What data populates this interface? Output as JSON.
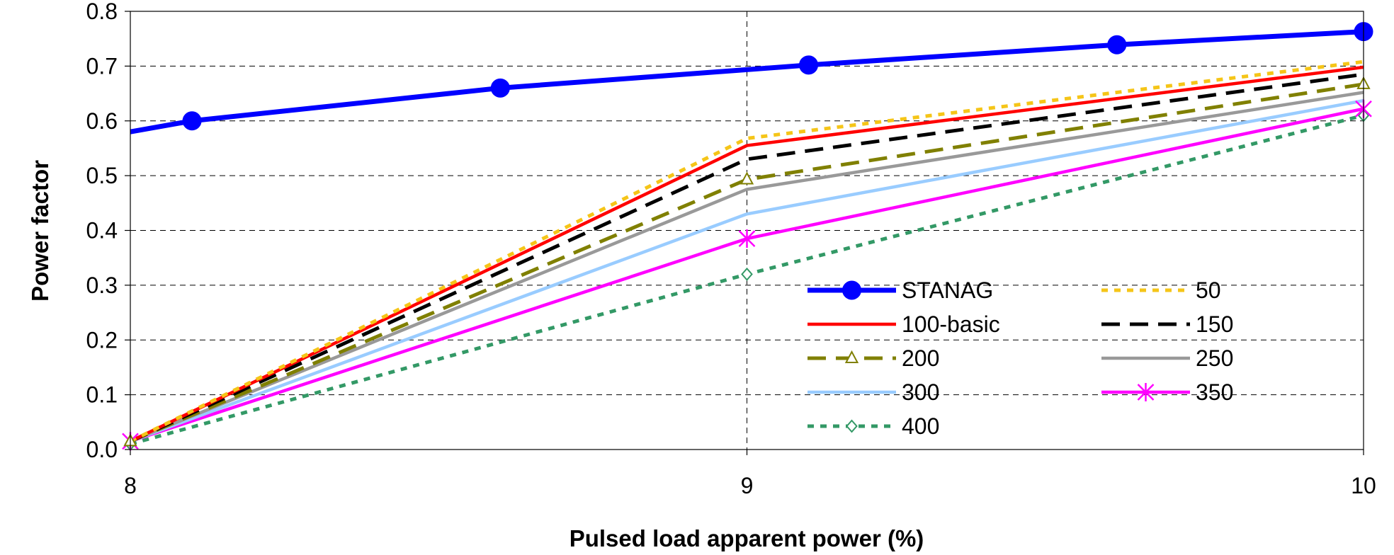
{
  "chart_data": {
    "type": "line",
    "title": "",
    "xlabel": "Pulsed load apparent power (%)",
    "ylabel": "Power factor",
    "xlim": [
      8,
      10
    ],
    "ylim": [
      0,
      0.8
    ],
    "x_ticks": [
      "8",
      "9",
      "10"
    ],
    "y_ticks": [
      "0.0",
      "0.1",
      "0.2",
      "0.3",
      "0.4",
      "0.5",
      "0.6",
      "0.7",
      "0.8"
    ],
    "grid": "horizontal dashed lines and dashed vertical line at 9",
    "legend_position": "lower-right inside plot, two columns",
    "series": [
      {
        "name": "STANAG",
        "color": "#0000ff",
        "marker": "filled-circle",
        "style": "solid-thick",
        "x": [
          8,
          8.1,
          8.6,
          9.1,
          9.6,
          10
        ],
        "y": [
          0.58,
          0.6,
          0.66,
          0.702,
          0.739,
          0.763
        ]
      },
      {
        "name": "50",
        "color": "#f5c518",
        "marker": "none",
        "style": "dotted",
        "x": [
          8,
          9,
          10
        ],
        "y": [
          0.015,
          0.568,
          0.708
        ]
      },
      {
        "name": "100-basic",
        "color": "#ff0000",
        "marker": "none",
        "style": "solid",
        "x": [
          8,
          9,
          10
        ],
        "y": [
          0.015,
          0.555,
          0.698
        ]
      },
      {
        "name": "150",
        "color": "#000000",
        "marker": "none",
        "style": "dashed",
        "x": [
          8,
          9,
          10
        ],
        "y": [
          0.015,
          0.53,
          0.685
        ]
      },
      {
        "name": "200",
        "color": "#808000",
        "marker": "open-triangle",
        "style": "dashed",
        "x": [
          8,
          9,
          10
        ],
        "y": [
          0.015,
          0.493,
          0.667
        ]
      },
      {
        "name": "250",
        "color": "#999999",
        "marker": "none",
        "style": "solid",
        "x": [
          8,
          9,
          10
        ],
        "y": [
          0.015,
          0.475,
          0.652
        ]
      },
      {
        "name": "300",
        "color": "#99ccff",
        "marker": "none",
        "style": "solid",
        "x": [
          8,
          9,
          10
        ],
        "y": [
          0.015,
          0.43,
          0.637
        ]
      },
      {
        "name": "350",
        "color": "#ff00ff",
        "marker": "asterisk",
        "style": "solid",
        "x": [
          8,
          9,
          10
        ],
        "y": [
          0.015,
          0.385,
          0.622
        ]
      },
      {
        "name": "400",
        "color": "#339966",
        "marker": "open-diamond",
        "style": "dotted",
        "x": [
          8,
          9,
          10
        ],
        "y": [
          0.01,
          0.32,
          0.61
        ]
      }
    ],
    "legend_order": [
      "STANAG",
      "50",
      "100-basic",
      "150",
      "200",
      "250",
      "300",
      "350",
      "400"
    ]
  }
}
